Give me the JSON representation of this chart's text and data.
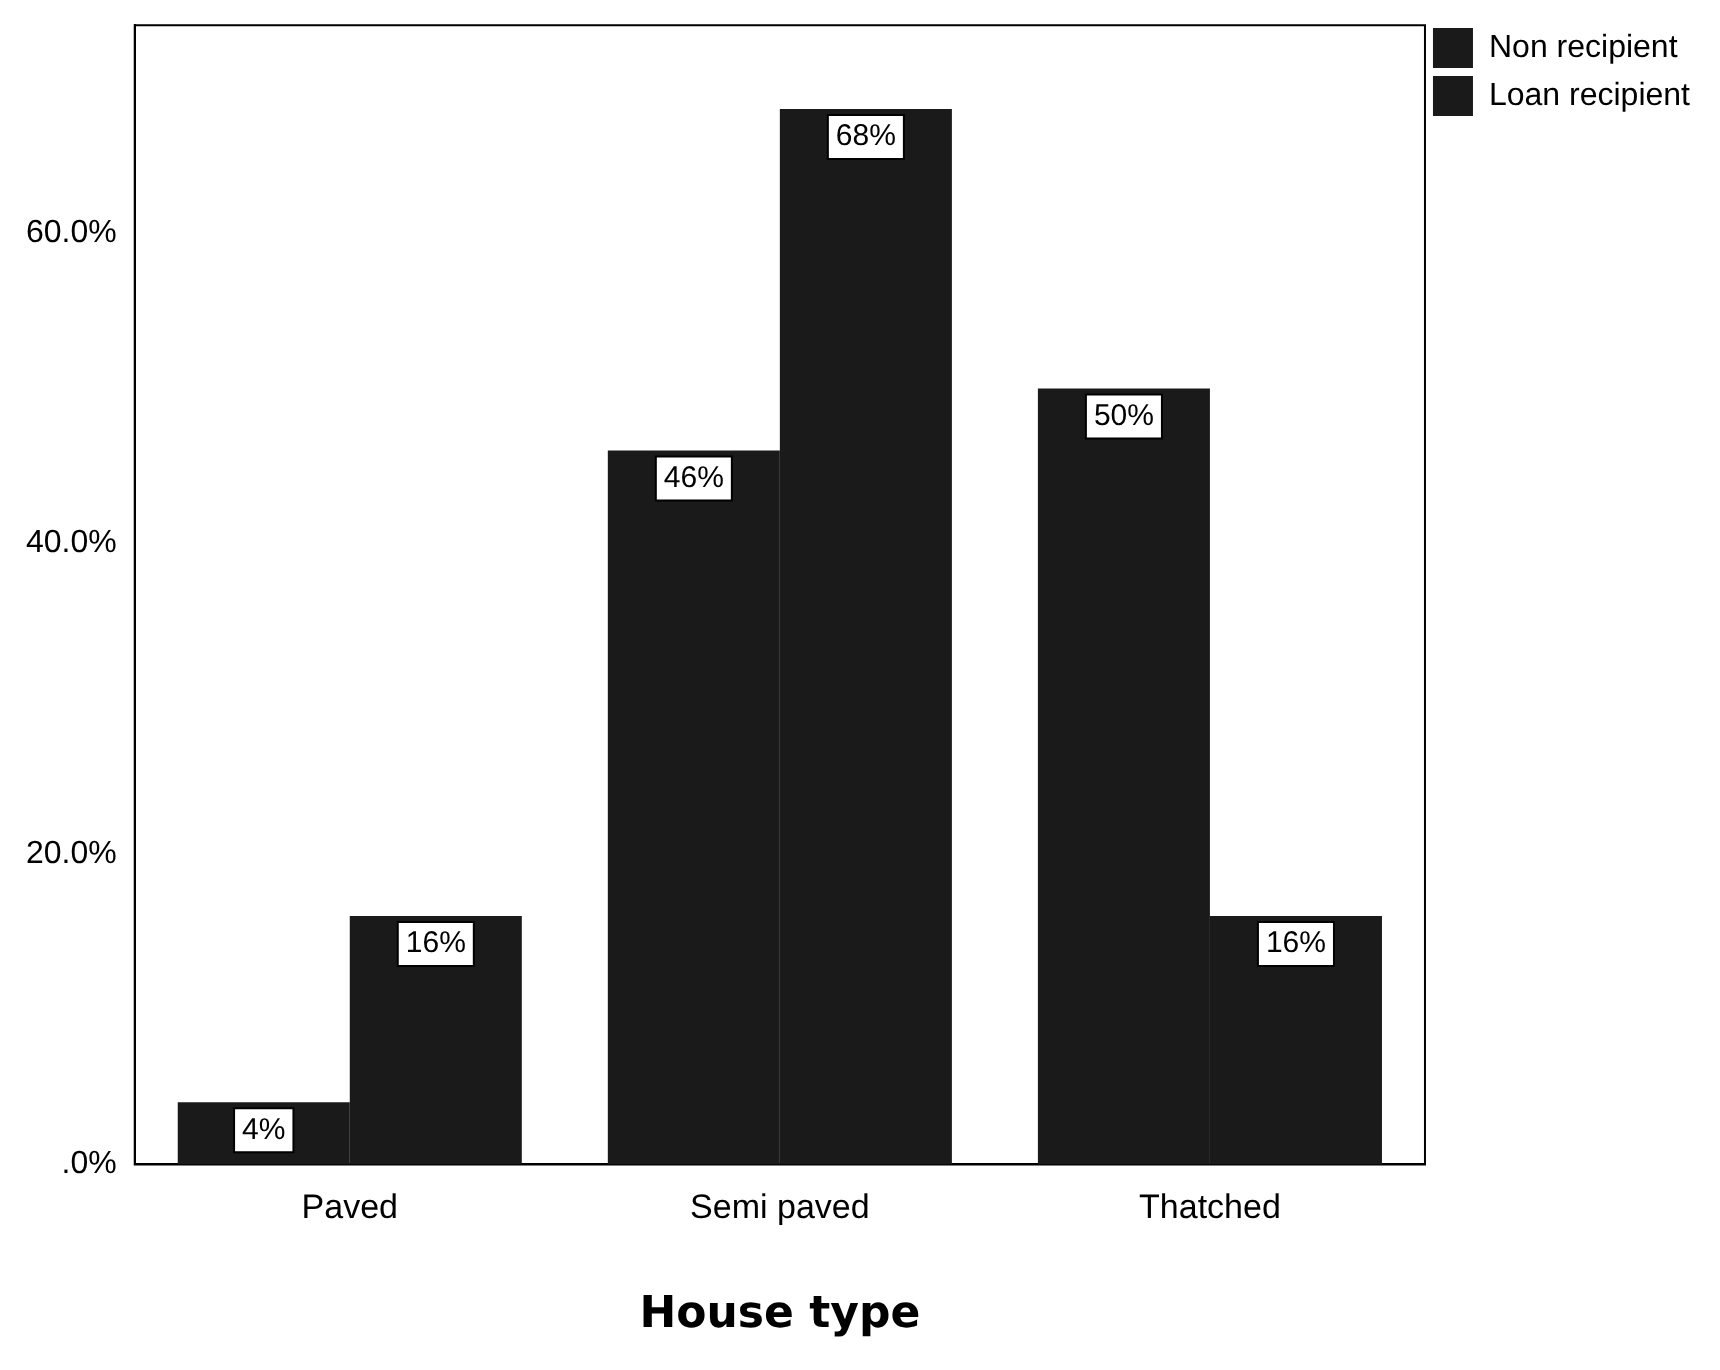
{
  "chart_data": {
    "type": "bar",
    "xlabel": "House type",
    "categories": [
      "Paved",
      "Semi paved",
      "Thatched"
    ],
    "series": [
      {
        "name": "Non recipient",
        "color": "#1a1a1a",
        "values": [
          4,
          46,
          50
        ],
        "value_labels": [
          "4%",
          "46%",
          "50%"
        ]
      },
      {
        "name": "Loan recipient",
        "color": "#1a1a1a",
        "values": [
          16,
          68,
          16
        ],
        "value_labels": [
          "16%",
          "68%",
          "16%"
        ]
      }
    ],
    "ylim": [
      0,
      73.4
    ],
    "yticks": [
      {
        "value": 0,
        "label": ".0%"
      },
      {
        "value": 20,
        "label": "20.0%"
      },
      {
        "value": 40,
        "label": "40.0%"
      },
      {
        "value": 60,
        "label": "60.0%"
      }
    ],
    "grid": false,
    "legend": "top right"
  }
}
